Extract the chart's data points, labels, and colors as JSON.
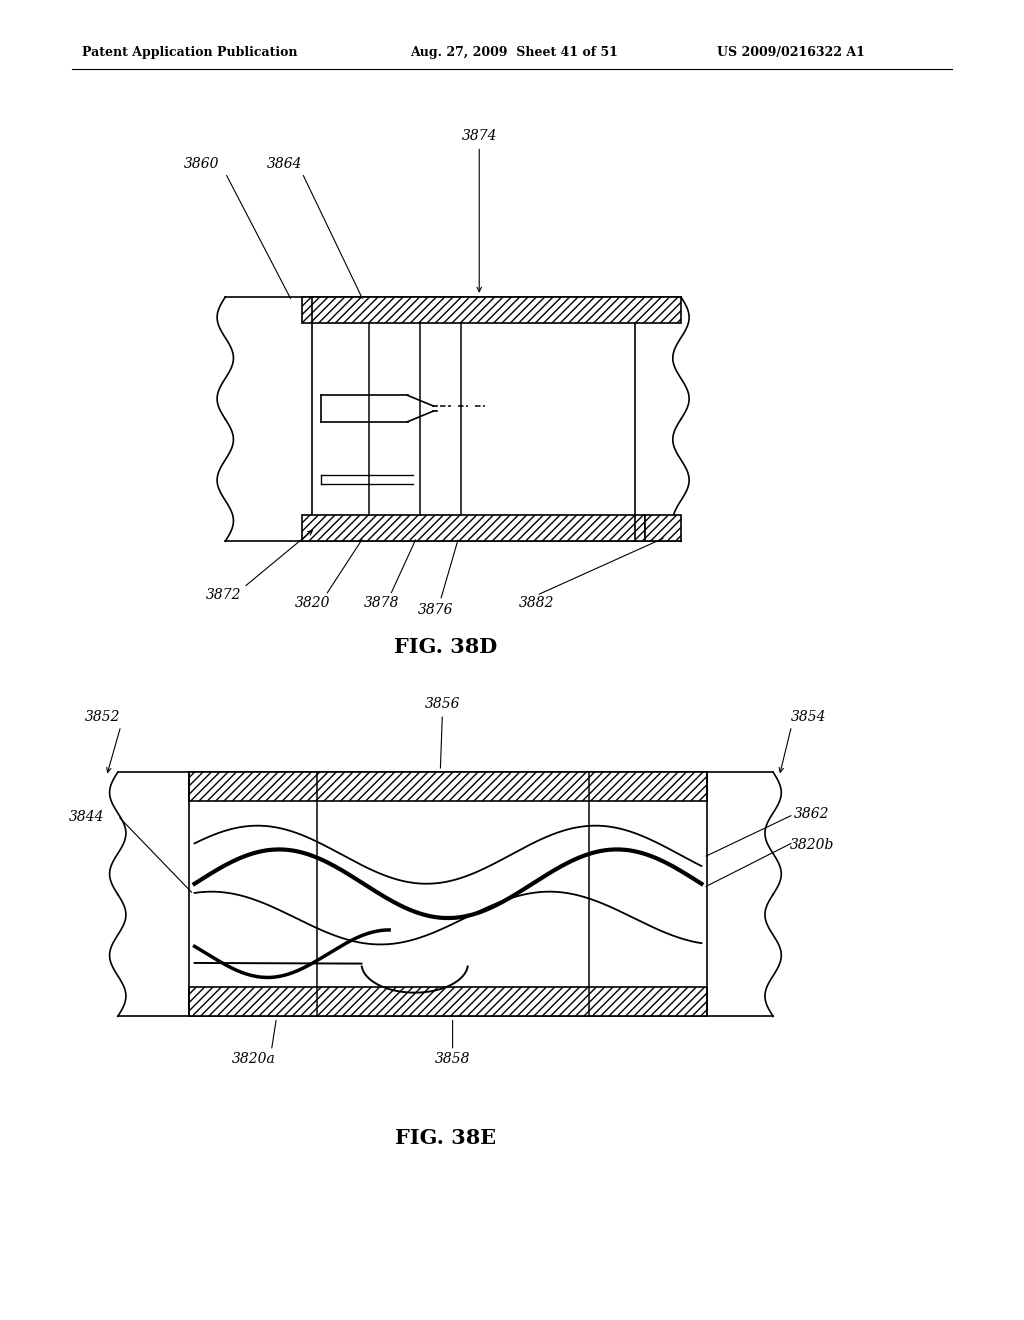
{
  "bg_color": "#ffffff",
  "header_left": "Patent Application Publication",
  "header_mid": "Aug. 27, 2009  Sheet 41 of 51",
  "header_right": "US 2009/0216322 A1",
  "fig38d_caption": "FIG. 38D",
  "fig38e_caption": "FIG. 38E"
}
